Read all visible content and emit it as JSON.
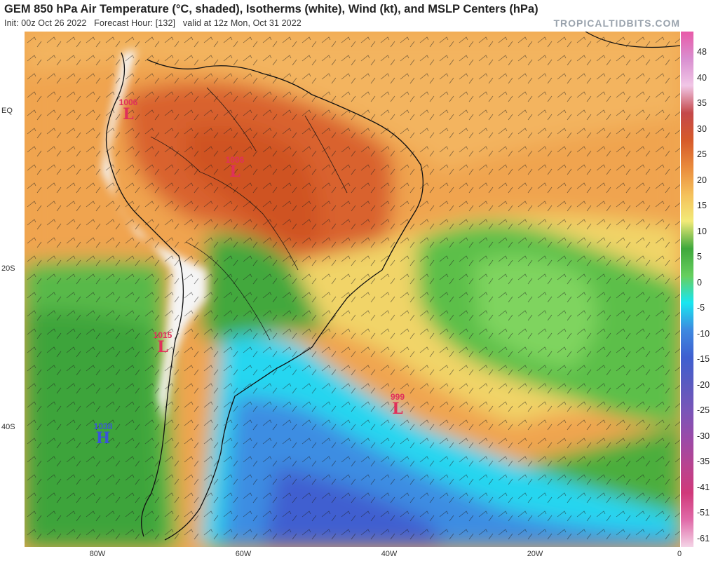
{
  "header": {
    "title": "GEM 850 hPa Air Temperature (°C, shaded), Isotherms (white), Wind (kt), and MSLP Centers (hPa)",
    "init": "Init: 00z Oct 26 2022",
    "forecast_hour": "Forecast Hour: [132]",
    "valid": "valid at 12z Mon, Oct 31 2022",
    "brand": "TROPICALTIDBITS.COM"
  },
  "axes": {
    "lat_labels": [
      "EQ",
      "20S",
      "40S"
    ],
    "lon_labels": [
      "80W",
      "60W",
      "40W",
      "20W",
      "0"
    ]
  },
  "colorbar": {
    "ticks": [
      "48",
      "40",
      "35",
      "30",
      "25",
      "20",
      "15",
      "10",
      "5",
      "0",
      "-5",
      "-10",
      "-15",
      "-20",
      "-25",
      "-30",
      "-35",
      "-41",
      "-51",
      "-61"
    ],
    "colors": [
      "#e85aa8",
      "#d98fd0",
      "#f1c6e6",
      "#c4484a",
      "#d65a2a",
      "#e98a3c",
      "#f5c05b",
      "#f2ea78",
      "#3fa83c",
      "#66cf5e",
      "#19e6f0",
      "#3d89e0",
      "#3f5fd0",
      "#5a5ac0",
      "#7a55b8",
      "#9a4aa8",
      "#b84490",
      "#d0397a",
      "#e06aa8",
      "#f4d4e6"
    ]
  },
  "pressure_centers": [
    {
      "type": "L",
      "value": "1006",
      "color": "#e0305a"
    },
    {
      "type": "L",
      "value": "1006",
      "color": "#e0305a"
    },
    {
      "type": "L",
      "value": "1015",
      "color": "#e0305a"
    },
    {
      "type": "L",
      "value": "999",
      "color": "#e0305a"
    },
    {
      "type": "H",
      "value": "1038",
      "color": "#3a55d8"
    }
  ]
}
